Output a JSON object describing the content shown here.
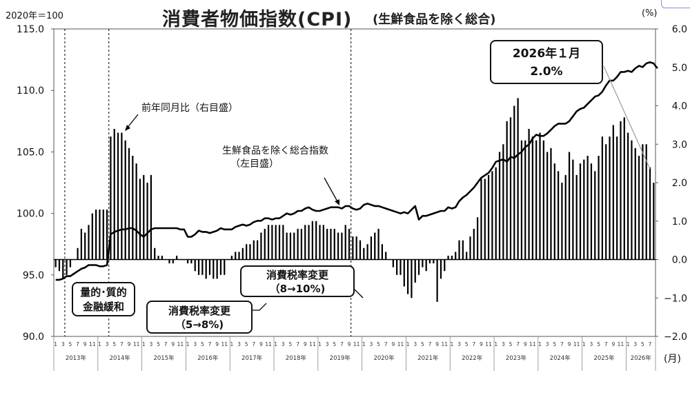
{
  "header": {
    "title": "消費者物価指数(CPI)",
    "subtitle": "(生鮮食品を除く総合)",
    "base_label": "2020年＝100",
    "right_unit": "(%)",
    "month_unit": "(月)"
  },
  "annotations": {
    "latest_callout": [
      "2026年１月",
      "2.0%"
    ],
    "qqe": [
      "量的･質的",
      "金融緩和"
    ],
    "tax_2014": [
      "消費税率変更",
      "（5→8%)"
    ],
    "tax_2019": [
      "消費税率変更",
      "（8→10%)"
    ],
    "yoy_label": "前年同月比（右目盛）",
    "index_label": [
      "生鮮食品を除く総合指数",
      "（左目盛）"
    ]
  },
  "colors": {
    "line": "#000000",
    "bars": "#000000",
    "callout_border": "#111111",
    "corner_tab": "#8a8fd0"
  },
  "chart_data": {
    "type": "bar+line",
    "x_unit": "month",
    "year_labels": [
      "2013年",
      "2014年",
      "2015年",
      "2016年",
      "2017年",
      "2018年",
      "2019年",
      "2020年",
      "2021年",
      "2022年",
      "2023年",
      "2024年",
      "2025年",
      "2026年"
    ],
    "month_tick_labels": [
      "1",
      "3",
      "5",
      "7",
      "9",
      "11"
    ],
    "left_axis": {
      "label": "2020年＝100",
      "ylim": [
        90.0,
        115.0
      ],
      "ticks": [
        "115.0",
        "110.0",
        "105.0",
        "100.0",
        "95.0",
        "90.0"
      ]
    },
    "right_axis": {
      "label": "(%)",
      "ylim": [
        -2.0,
        6.0
      ],
      "ticks": [
        "6.0",
        "5.0",
        "4.0",
        "3.0",
        "2.0",
        "1.0",
        "0.0",
        "−1.0",
        "−2.0"
      ]
    },
    "vertical_markers": [
      "2013-04",
      "2014-04",
      "2019-10"
    ],
    "series": [
      {
        "name": "前年同月比（右目盛）",
        "kind": "bar",
        "axis": "right",
        "values": [
          -0.2,
          -0.3,
          -0.5,
          -0.4,
          -0.2,
          0.0,
          0.3,
          0.8,
          0.7,
          0.9,
          1.2,
          1.3,
          1.3,
          1.3,
          1.3,
          3.2,
          3.4,
          3.3,
          3.3,
          3.1,
          2.9,
          2.7,
          2.5,
          2.1,
          2.2,
          2.0,
          2.2,
          0.3,
          0.1,
          0.1,
          0.0,
          -0.1,
          -0.1,
          0.1,
          0.0,
          0.0,
          -0.1,
          -0.1,
          -0.3,
          -0.4,
          -0.4,
          -0.5,
          -0.4,
          -0.5,
          -0.5,
          -0.4,
          -0.4,
          0.0,
          0.1,
          0.2,
          0.2,
          0.3,
          0.4,
          0.4,
          0.5,
          0.5,
          0.7,
          0.8,
          0.9,
          0.9,
          0.9,
          0.9,
          0.9,
          0.7,
          0.7,
          0.7,
          0.8,
          0.8,
          0.9,
          0.9,
          1.0,
          1.0,
          0.9,
          0.9,
          0.8,
          0.8,
          0.8,
          0.7,
          0.7,
          0.9,
          0.8,
          0.6,
          0.6,
          0.5,
          0.3,
          0.4,
          0.6,
          0.7,
          0.8,
          0.4,
          0.2,
          0.0,
          -0.2,
          -0.4,
          -0.4,
          -0.7,
          -0.9,
          -1.0,
          -0.6,
          -0.4,
          -0.2,
          -0.3,
          -0.1,
          -0.1,
          -1.1,
          -0.5,
          -0.3,
          0.1,
          0.1,
          0.2,
          0.5,
          0.5,
          0.2,
          0.6,
          0.8,
          1.1,
          2.1,
          2.1,
          2.2,
          2.3,
          2.4,
          2.8,
          3.0,
          3.6,
          3.7,
          4.0,
          4.2,
          3.1,
          3.1,
          3.4,
          3.2,
          3.1,
          3.3,
          3.1,
          2.8,
          2.9,
          2.5,
          2.3,
          2.0,
          2.2,
          2.8,
          2.6,
          2.2,
          2.5,
          2.6,
          2.7,
          2.5,
          2.3,
          2.7,
          3.2,
          3.0,
          3.2,
          3.5,
          3.2,
          3.6,
          3.7,
          3.3,
          3.1,
          2.9,
          2.7,
          3.0,
          3.0,
          2.4,
          2.0
        ]
      },
      {
        "name": "生鮮食品を除く総合指数（左目盛）",
        "kind": "line",
        "axis": "left",
        "values": [
          94.6,
          94.6,
          94.7,
          94.9,
          94.9,
          95.1,
          95.3,
          95.5,
          95.6,
          95.8,
          95.8,
          95.8,
          95.7,
          95.7,
          95.8,
          98.3,
          98.5,
          98.6,
          98.7,
          98.7,
          98.8,
          98.8,
          98.6,
          98.3,
          98.1,
          98.4,
          98.7,
          98.8,
          98.8,
          98.8,
          98.8,
          98.8,
          98.8,
          98.8,
          98.7,
          98.7,
          98.1,
          98.1,
          98.3,
          98.6,
          98.5,
          98.5,
          98.4,
          98.5,
          98.6,
          98.8,
          98.7,
          98.7,
          98.7,
          98.9,
          99.0,
          99.1,
          99.0,
          99.1,
          99.3,
          99.4,
          99.4,
          99.6,
          99.6,
          99.5,
          99.6,
          99.6,
          99.8,
          100.0,
          99.9,
          100.0,
          100.2,
          100.2,
          100.4,
          100.5,
          100.3,
          100.2,
          100.2,
          100.3,
          100.4,
          100.5,
          100.5,
          100.5,
          100.4,
          100.6,
          100.6,
          100.4,
          100.3,
          100.4,
          100.7,
          100.8,
          100.7,
          100.6,
          100.6,
          100.5,
          100.4,
          100.3,
          100.2,
          100.1,
          100.0,
          100.1,
          100.0,
          100.3,
          100.6,
          99.5,
          99.8,
          99.8,
          99.9,
          100.0,
          100.1,
          100.2,
          100.2,
          100.5,
          100.4,
          100.5,
          101.0,
          101.3,
          101.5,
          101.8,
          102.1,
          102.5,
          102.9,
          103.1,
          103.3,
          103.7,
          104.2,
          104.3,
          104.4,
          104.2,
          104.6,
          104.5,
          104.8,
          105.0,
          105.4,
          105.6,
          106.1,
          106.4,
          106.3,
          106.3,
          106.5,
          106.8,
          107.1,
          107.3,
          107.3,
          107.3,
          107.5,
          107.9,
          108.3,
          108.5,
          108.6,
          108.9,
          109.2,
          109.5,
          109.6,
          109.9,
          110.4,
          110.8,
          110.8,
          111.1,
          111.5,
          111.5,
          111.6,
          111.5,
          111.8,
          112.0,
          111.9,
          112.2,
          112.3,
          112.2,
          111.8
        ]
      }
    ],
    "latest": {
      "period": "2026年１月",
      "yoy_percent": 2.0
    }
  }
}
